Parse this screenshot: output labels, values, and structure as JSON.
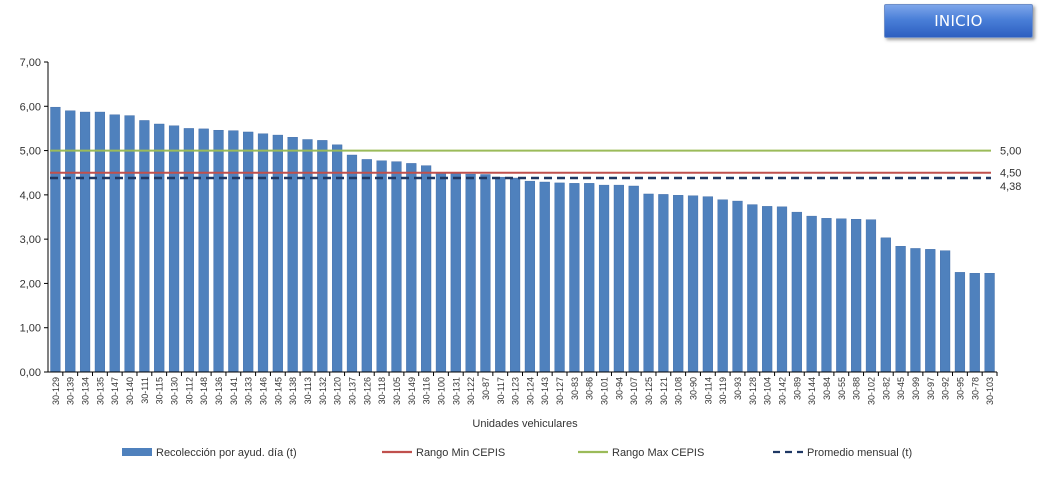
{
  "button": {
    "label": "INICIO"
  },
  "colors": {
    "bar": "#4F81BD",
    "bar_edge": "#3A66A3",
    "min": "#C0504D",
    "max": "#9BBB59",
    "avg": "#1F3864",
    "grid": "#D9D9D9",
    "axis": "#000000"
  },
  "chart_data": {
    "type": "bar",
    "xlabel": "Unidades vehiculares",
    "ylim": [
      0,
      7
    ],
    "yticks": [
      "0,00",
      "1,00",
      "2,00",
      "3,00",
      "4,00",
      "5,00",
      "6,00",
      "7,00"
    ],
    "grid": false,
    "legend_position": "bottom",
    "categories": [
      "30-129",
      "30-139",
      "30-134",
      "30-135",
      "30-147",
      "30-140",
      "30-111",
      "30-115",
      "30-130",
      "30-112",
      "30-148",
      "30-136",
      "30-141",
      "30-133",
      "30-146",
      "30-145",
      "30-138",
      "30-113",
      "30-132",
      "30-120",
      "30-137",
      "30-126",
      "30-118",
      "30-105",
      "30-149",
      "30-116",
      "30-100",
      "30-131",
      "30-122",
      "30-87",
      "30-117",
      "30-123",
      "30-124",
      "30-143",
      "30-127",
      "30-83",
      "30-86",
      "30-101",
      "30-94",
      "30-107",
      "30-125",
      "30-121",
      "30-108",
      "30-90",
      "30-114",
      "30-119",
      "30-93",
      "30-128",
      "30-104",
      "30-142",
      "30-89",
      "30-144",
      "30-84",
      "30-55",
      "30-88",
      "30-102",
      "30-82",
      "30-45",
      "30-99",
      "30-97",
      "30-92",
      "30-95",
      "30-78",
      "30-103"
    ],
    "series": [
      {
        "name": "Recolección por ayud. día (t)",
        "type": "bar",
        "values": [
          5.98,
          5.9,
          5.87,
          5.87,
          5.81,
          5.79,
          5.68,
          5.6,
          5.56,
          5.5,
          5.49,
          5.46,
          5.45,
          5.42,
          5.38,
          5.35,
          5.3,
          5.25,
          5.23,
          5.13,
          4.9,
          4.8,
          4.77,
          4.75,
          4.71,
          4.66,
          4.5,
          4.48,
          4.47,
          4.46,
          4.4,
          4.38,
          4.31,
          4.29,
          4.27,
          4.26,
          4.26,
          4.22,
          4.22,
          4.2,
          4.02,
          4.01,
          3.99,
          3.98,
          3.96,
          3.89,
          3.86,
          3.78,
          3.74,
          3.73,
          3.61,
          3.52,
          3.47,
          3.46,
          3.45,
          3.44,
          3.03,
          2.84,
          2.79,
          2.77,
          2.74,
          2.25,
          2.23,
          2.23
        ]
      },
      {
        "name": "Rango Min CEPIS",
        "type": "line",
        "value": 4.5,
        "label": "4,50"
      },
      {
        "name": "Rango Max CEPIS",
        "type": "line",
        "value": 5.0,
        "label": "5,00"
      },
      {
        "name": "Promedio mensual (t)",
        "type": "dashed-line",
        "value": 4.38,
        "label": "4,38"
      }
    ]
  }
}
